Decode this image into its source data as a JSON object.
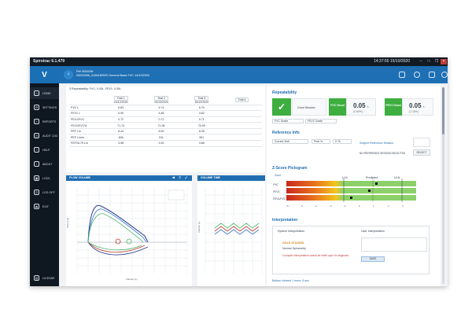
{
  "titlebar": {
    "app_title": "Spirotrac 6.1.479",
    "clock": "14:37:55  15/10/2020"
  },
  "topbar": {
    "patient_id": "Pt# 0000036",
    "patient_line": "00000366_0156180920   General Base FVC   14/10/2020"
  },
  "sidebar": {
    "logo": "V",
    "items": [
      {
        "label": "HOME",
        "icon": "home-icon"
      },
      {
        "label": "SETTINGS",
        "icon": "gear-icon"
      },
      {
        "label": "REPORTS",
        "icon": "document-icon"
      },
      {
        "label": "AUDIT LOG",
        "icon": "clock-icon"
      },
      {
        "label": "HELP",
        "icon": "help-icon"
      },
      {
        "label": "ABOUT",
        "icon": "info-icon"
      },
      {
        "label": "LOCK",
        "icon": "lock-icon"
      },
      {
        "label": "LOG OFF",
        "icon": "power-icon"
      },
      {
        "label": "EXIT",
        "icon": "exit-icon"
      }
    ],
    "footer": "LICENSE"
  },
  "trials": {
    "summary": "3 Repeatability: FVC: 0.05L, FEV1: 0.05L",
    "columns": [
      "Trial 1",
      "Trial 2",
      "Trial 3",
      "Trial 4"
    ],
    "dates": [
      "15/10/2020",
      "15/10/2020",
      "15/10/2020",
      ""
    ],
    "rows": [
      {
        "label": "FVC L",
        "values": [
          "6.83",
          "6.74",
          "6.79",
          ""
        ]
      },
      {
        "label": "FEV1 L",
        "values": [
          "4.90",
          "4.85",
          "4.82",
          ""
        ]
      },
      {
        "label": "FEV1/FVC",
        "values": [
          "0.72",
          "0.72",
          "0.71",
          ""
        ]
      },
      {
        "label": "FEV1/FVC%",
        "values": [
          "71.74",
          "71.96",
          "70.99",
          ""
        ]
      },
      {
        "label": "PEF L/s",
        "values": [
          "8.44",
          "8.52",
          "8.35",
          ""
        ]
      },
      {
        "label": "PEF L/min",
        "values": [
          "506",
          "511",
          "501",
          ""
        ]
      },
      {
        "label": "FEF25-75 L/s",
        "values": [
          "3.98",
          "3.92",
          "3.85",
          ""
        ]
      }
    ]
  },
  "flow_panel": {
    "title": "FLOW VOLUME",
    "y_axis": "Flow (L/s)",
    "x_axis": "Volume (L)",
    "header_icons": "⇄ ▽ ⤢"
  },
  "volume_panel": {
    "title": "VOLUME TIME",
    "y_axis": "Volume (L)"
  },
  "repeatability": {
    "title": "Repeatability",
    "session": "Good Session",
    "fvc": {
      "badge": "FVC Good",
      "value": "0.05",
      "unit": "L",
      "pct": "(0.60%)"
    },
    "fev1": {
      "badge": "FEV1 Good",
      "value": "0.05",
      "unit": "L",
      "pct": "(1.15%)"
    },
    "fvc_grade": "FVC Grade",
    "fev1_grade": "FEV1 Grade"
  },
  "reference": {
    "title": "Reference Info",
    "current_visit": "Current Visit",
    "pred_label": "Pred %",
    "pred_value": "0.76",
    "subject_ref": "Subject Reference Session",
    "no_session": "NO REFERENCE SESSION SELECTED",
    "select": "SELECT"
  },
  "zscore": {
    "title": "Z-Score Pictogram",
    "head": "Zone",
    "lln": "LLN",
    "predicted": "Predicted",
    "uln": "ULN",
    "rows": [
      "FVC",
      "FEV1",
      "FEV1/FVC"
    ],
    "ticks": [
      "-5",
      "-4",
      "-3",
      "-2",
      "-1",
      "0",
      "1",
      "2",
      "3"
    ]
  },
  "interpretation": {
    "title": "Interpretation",
    "system_tab": "System Interpretation",
    "user_tab": "User Interpretation",
    "grade": "GOLD STAGING",
    "item": "Normal Spirometry",
    "warning": "Computer interpretation cannot be relied upon for diagnosis.",
    "save": "SAVE",
    "cutoff": "Bottom cleared 1 more. 8 sec"
  },
  "colors": {
    "brand": "#1e6fb3",
    "good": "#3dae3f",
    "sidebar": "#0f1720"
  }
}
